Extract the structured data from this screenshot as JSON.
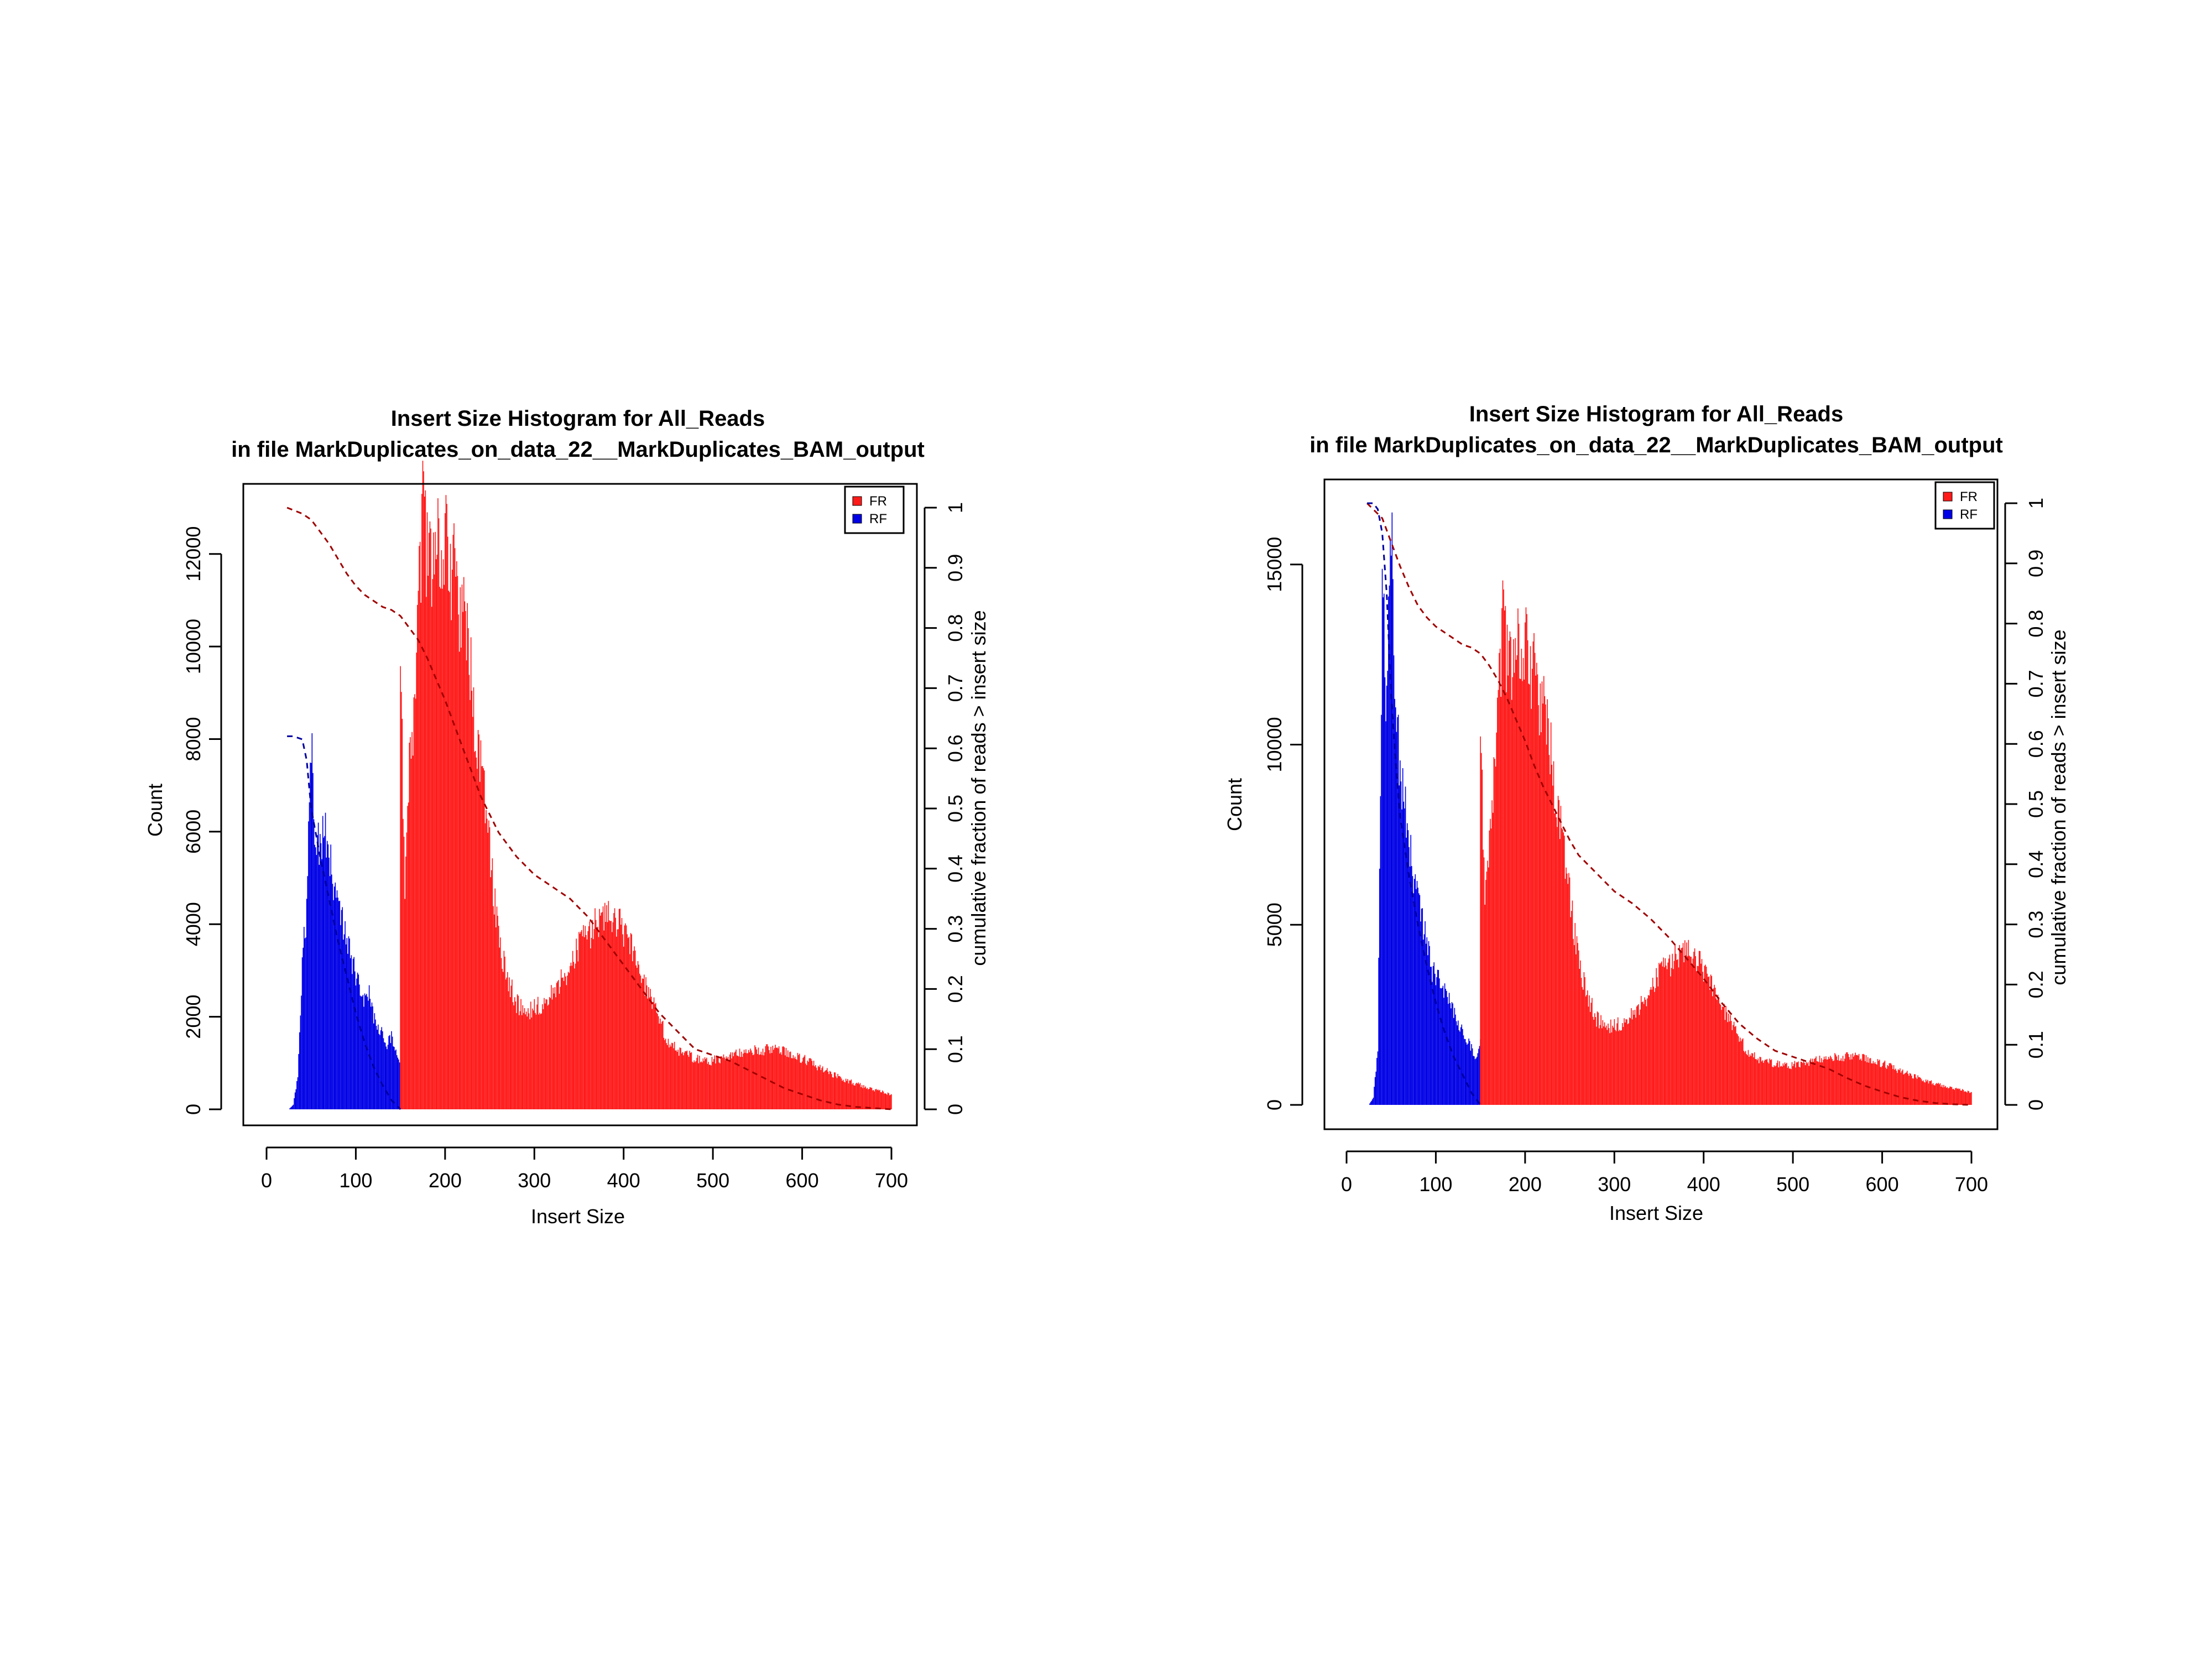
{
  "chart_data": [
    {
      "type": "bar",
      "title": "Insert Size Histogram for All_Reads",
      "subtitle": "in file MarkDuplicates_on_data_22__MarkDuplicates_BAM_output",
      "xlabel": "Insert Size",
      "ylabel": "Count",
      "y2label": "cumulative fraction of reads > insert size",
      "xlim": [
        0,
        700
      ],
      "ylim": [
        0,
        13000
      ],
      "y2lim": [
        0,
        1
      ],
      "xticks": [
        "0",
        "100",
        "200",
        "300",
        "400",
        "500",
        "600",
        "700"
      ],
      "yticks": [
        "0",
        "2000",
        "4000",
        "6000",
        "8000",
        "10000",
        "12000"
      ],
      "y2ticks": [
        "0",
        "0.1",
        "0.2",
        "0.3",
        "0.4",
        "0.5",
        "0.6",
        "0.7",
        "0.8",
        "0.9",
        "1"
      ],
      "legend": {
        "position": "top-right",
        "entries": [
          "FR",
          "RF"
        ]
      },
      "colors": {
        "FR": "#ff1a1a",
        "RF": "#0000e6"
      },
      "series": [
        {
          "name": "RF",
          "x": [
            25,
            30,
            35,
            40,
            45,
            50,
            55,
            60,
            65,
            70,
            75,
            80,
            85,
            90,
            95,
            100,
            105,
            110,
            115,
            120,
            125,
            130,
            135,
            140,
            145,
            150
          ],
          "values": [
            0,
            100,
            700,
            3200,
            4300,
            8100,
            5900,
            5600,
            6100,
            5700,
            5000,
            4400,
            4000,
            3500,
            3300,
            2900,
            2500,
            2300,
            2500,
            2000,
            1800,
            1600,
            1400,
            1600,
            1200,
            1000
          ]
        },
        {
          "name": "FR",
          "x": [
            150,
            155,
            160,
            165,
            170,
            175,
            180,
            185,
            190,
            195,
            200,
            205,
            210,
            215,
            220,
            225,
            230,
            235,
            240,
            245,
            250,
            260,
            270,
            280,
            290,
            300,
            310,
            320,
            330,
            340,
            350,
            360,
            370,
            380,
            390,
            400,
            410,
            420,
            430,
            440,
            450,
            460,
            470,
            480,
            490,
            500,
            520,
            540,
            560,
            580,
            600,
            620,
            640,
            660,
            680,
            700
          ],
          "values": [
            10300,
            4500,
            7800,
            8300,
            10700,
            12900,
            12000,
            11300,
            12700,
            11900,
            12600,
            11300,
            11700,
            10600,
            11000,
            10200,
            9100,
            8000,
            7300,
            6600,
            5600,
            3700,
            2800,
            2300,
            2100,
            2200,
            2300,
            2500,
            2800,
            3100,
            3500,
            3800,
            4000,
            4100,
            4100,
            3900,
            3500,
            2900,
            2400,
            1900,
            1500,
            1300,
            1200,
            1100,
            1050,
            1050,
            1150,
            1250,
            1300,
            1250,
            1100,
            900,
            700,
            550,
            420,
            320
          ]
        },
        {
          "name": "FR cumulative",
          "x": [
            23,
            40,
            50,
            60,
            70,
            80,
            90,
            100,
            110,
            120,
            130,
            140,
            150,
            160,
            170,
            180,
            190,
            200,
            210,
            220,
            230,
            240,
            250,
            260,
            280,
            300,
            320,
            340,
            360,
            380,
            400,
            420,
            440,
            460,
            480,
            500,
            520,
            540,
            560,
            580,
            600,
            620,
            640,
            660,
            680,
            700
          ],
          "values": [
            1.0,
            0.99,
            0.98,
            0.96,
            0.94,
            0.915,
            0.89,
            0.87,
            0.855,
            0.845,
            0.835,
            0.83,
            0.82,
            0.8,
            0.78,
            0.75,
            0.715,
            0.68,
            0.64,
            0.6,
            0.56,
            0.52,
            0.49,
            0.46,
            0.42,
            0.39,
            0.37,
            0.35,
            0.32,
            0.28,
            0.24,
            0.2,
            0.16,
            0.13,
            0.1,
            0.09,
            0.08,
            0.065,
            0.05,
            0.035,
            0.025,
            0.015,
            0.008,
            0.004,
            0.002,
            0.0
          ]
        },
        {
          "name": "RF cumulative",
          "x": [
            23,
            30,
            40,
            45,
            50,
            55,
            60,
            70,
            80,
            90,
            100,
            110,
            120,
            130,
            140,
            150
          ],
          "values": [
            0.62,
            0.62,
            0.615,
            0.58,
            0.5,
            0.46,
            0.42,
            0.35,
            0.28,
            0.22,
            0.16,
            0.11,
            0.07,
            0.04,
            0.015,
            0.0
          ]
        }
      ]
    },
    {
      "type": "bar",
      "title": "Insert Size Histogram for All_Reads",
      "subtitle": "in file MarkDuplicates_on_data_22__MarkDuplicates_BAM_output",
      "xlabel": "Insert Size",
      "ylabel": "Count",
      "y2label": "cumulative fraction of reads > insert size",
      "xlim": [
        0,
        700
      ],
      "ylim": [
        0,
        17000
      ],
      "y2lim": [
        0,
        1
      ],
      "xticks": [
        "0",
        "100",
        "200",
        "300",
        "400",
        "500",
        "600",
        "700"
      ],
      "yticks": [
        "0",
        "5000",
        "10000",
        "15000"
      ],
      "y2ticks": [
        "0",
        "0.1",
        "0.2",
        "0.3",
        "0.4",
        "0.5",
        "0.6",
        "0.7",
        "0.8",
        "0.9",
        "1"
      ],
      "legend": {
        "position": "top-right",
        "entries": [
          "FR",
          "RF"
        ]
      },
      "colors": {
        "FR": "#ff1a1a",
        "RF": "#0000e6"
      },
      "series": [
        {
          "name": "RF",
          "x": [
            25,
            30,
            35,
            40,
            45,
            50,
            55,
            60,
            65,
            70,
            75,
            80,
            85,
            90,
            95,
            100,
            105,
            110,
            115,
            120,
            125,
            130,
            135,
            140,
            145,
            150
          ],
          "values": [
            0,
            200,
            1500,
            14500,
            11000,
            16500,
            11500,
            9000,
            8500,
            7500,
            6500,
            5800,
            5000,
            4400,
            3800,
            3600,
            3300,
            3100,
            2900,
            2600,
            2300,
            2000,
            1800,
            1600,
            1200,
            1800
          ]
        },
        {
          "name": "FR",
          "x": [
            150,
            155,
            160,
            165,
            170,
            175,
            180,
            185,
            190,
            195,
            200,
            205,
            210,
            215,
            220,
            225,
            230,
            235,
            240,
            245,
            250,
            260,
            270,
            280,
            290,
            300,
            310,
            320,
            330,
            340,
            350,
            360,
            370,
            380,
            390,
            400,
            410,
            420,
            430,
            440,
            450,
            460,
            470,
            480,
            490,
            500,
            520,
            540,
            560,
            580,
            600,
            620,
            640,
            660,
            680,
            700
          ],
          "values": [
            11000,
            5500,
            7500,
            9000,
            11000,
            13400,
            12400,
            11700,
            13200,
            12500,
            13100,
            11800,
            12100,
            11000,
            11400,
            10500,
            9500,
            8400,
            7600,
            6700,
            5800,
            4000,
            3000,
            2400,
            2200,
            2200,
            2300,
            2500,
            2800,
            3200,
            3600,
            3900,
            4100,
            4200,
            4100,
            3800,
            3300,
            2800,
            2300,
            1800,
            1500,
            1300,
            1200,
            1150,
            1100,
            1100,
            1200,
            1300,
            1350,
            1300,
            1150,
            950,
            750,
            580,
            450,
            350
          ]
        },
        {
          "name": "FR cumulative",
          "x": [
            23,
            40,
            50,
            60,
            70,
            80,
            90,
            100,
            110,
            120,
            130,
            140,
            150,
            160,
            170,
            180,
            190,
            200,
            210,
            220,
            230,
            240,
            250,
            260,
            280,
            300,
            320,
            340,
            360,
            380,
            400,
            420,
            440,
            460,
            480,
            500,
            520,
            540,
            560,
            580,
            600,
            620,
            640,
            660,
            680,
            700
          ],
          "values": [
            1.0,
            0.975,
            0.935,
            0.895,
            0.86,
            0.83,
            0.81,
            0.795,
            0.785,
            0.775,
            0.765,
            0.76,
            0.75,
            0.73,
            0.705,
            0.675,
            0.64,
            0.605,
            0.565,
            0.53,
            0.5,
            0.47,
            0.44,
            0.415,
            0.385,
            0.355,
            0.335,
            0.31,
            0.28,
            0.245,
            0.21,
            0.17,
            0.135,
            0.11,
            0.09,
            0.08,
            0.07,
            0.06,
            0.045,
            0.032,
            0.022,
            0.013,
            0.007,
            0.003,
            0.001,
            0.0
          ]
        },
        {
          "name": "RF cumulative",
          "x": [
            23,
            30,
            35,
            40,
            45,
            50,
            55,
            60,
            70,
            80,
            90,
            100,
            110,
            120,
            130,
            140,
            150
          ],
          "values": [
            1.0,
            1.0,
            0.99,
            0.95,
            0.85,
            0.68,
            0.57,
            0.48,
            0.38,
            0.3,
            0.23,
            0.17,
            0.12,
            0.08,
            0.05,
            0.02,
            0.0
          ]
        }
      ]
    }
  ]
}
